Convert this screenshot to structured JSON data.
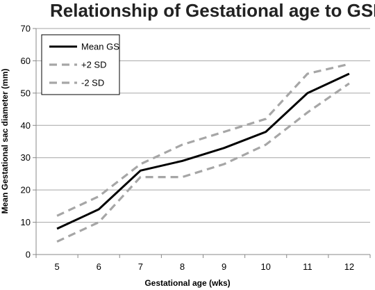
{
  "chart_data": {
    "type": "line",
    "title": "Relationship of Gestational age to GSD",
    "xlabel": "Gestational  age (wks)",
    "ylabel": "Mean Gestational sac diameter (mm)",
    "x": [
      "5",
      "6",
      "7",
      "8",
      "9",
      "10",
      "11",
      "12"
    ],
    "ylim": [
      0,
      70
    ],
    "yticks": [
      0,
      10,
      20,
      30,
      40,
      50,
      60,
      70
    ],
    "grid": true,
    "legend_position": "top-left",
    "series": [
      {
        "name": "Mean GS",
        "values": [
          8,
          14,
          26,
          29,
          33,
          38,
          50,
          56
        ],
        "color": "#000000",
        "dash": "solid"
      },
      {
        "name": "+2 SD",
        "values": [
          12,
          18,
          28,
          34,
          38,
          42,
          56,
          59
        ],
        "color": "#a6a6a6",
        "dash": "dashed"
      },
      {
        "name": "-2 SD",
        "values": [
          4,
          10,
          24,
          24,
          28,
          34,
          44,
          53
        ],
        "color": "#a6a6a6",
        "dash": "dashed"
      }
    ]
  }
}
